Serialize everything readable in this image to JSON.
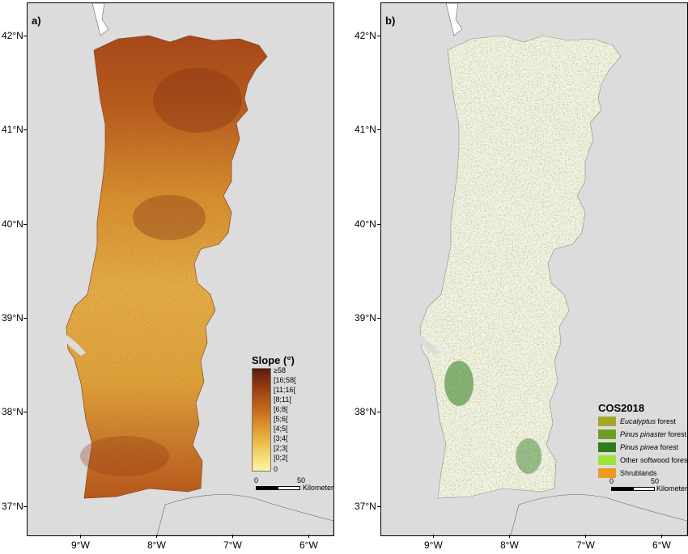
{
  "panels": [
    {
      "label": "a)",
      "latitudes": [
        "42°N",
        "41°N",
        "40°N",
        "39°N",
        "38°N",
        "37°N"
      ],
      "longitudes": [
        "9°W",
        "8°W",
        "7°W",
        "6°W"
      ],
      "legend": {
        "title": "Slope (°)",
        "classes": [
          "≥58",
          "[16;58[",
          "[11;16[",
          "[8;11[",
          "[6;8[",
          "[5;6[",
          "[4;5[",
          "[3;4[",
          "[2;3[",
          "[0;2[",
          "0"
        ]
      },
      "scale_bar": {
        "start": "0",
        "end": "50",
        "unit": "Kilometers"
      }
    },
    {
      "label": "b)",
      "latitudes": [
        "42°N",
        "41°N",
        "40°N",
        "39°N",
        "38°N",
        "37°N"
      ],
      "longitudes": [
        "9°W",
        "8°W",
        "7°W",
        "6°W"
      ],
      "legend": {
        "title": "COS2018",
        "classes": [
          {
            "italic": "Eucalyptus",
            "rest": " forest",
            "color": "#a4a82a"
          },
          {
            "italic": "Pinus pinaster",
            "rest": " forest",
            "color": "#6f9e22"
          },
          {
            "italic": "Pinus pinea",
            "rest": " forest",
            "color": "#2f7d1e"
          },
          {
            "italic": "",
            "rest": "Other softwood forest",
            "color": "#9ee33a"
          },
          {
            "italic": "",
            "rest": "Shrublands",
            "color": "#ee9a1e"
          }
        ]
      },
      "scale_bar": {
        "start": "0",
        "end": "50",
        "unit": "Kilometers"
      }
    }
  ]
}
